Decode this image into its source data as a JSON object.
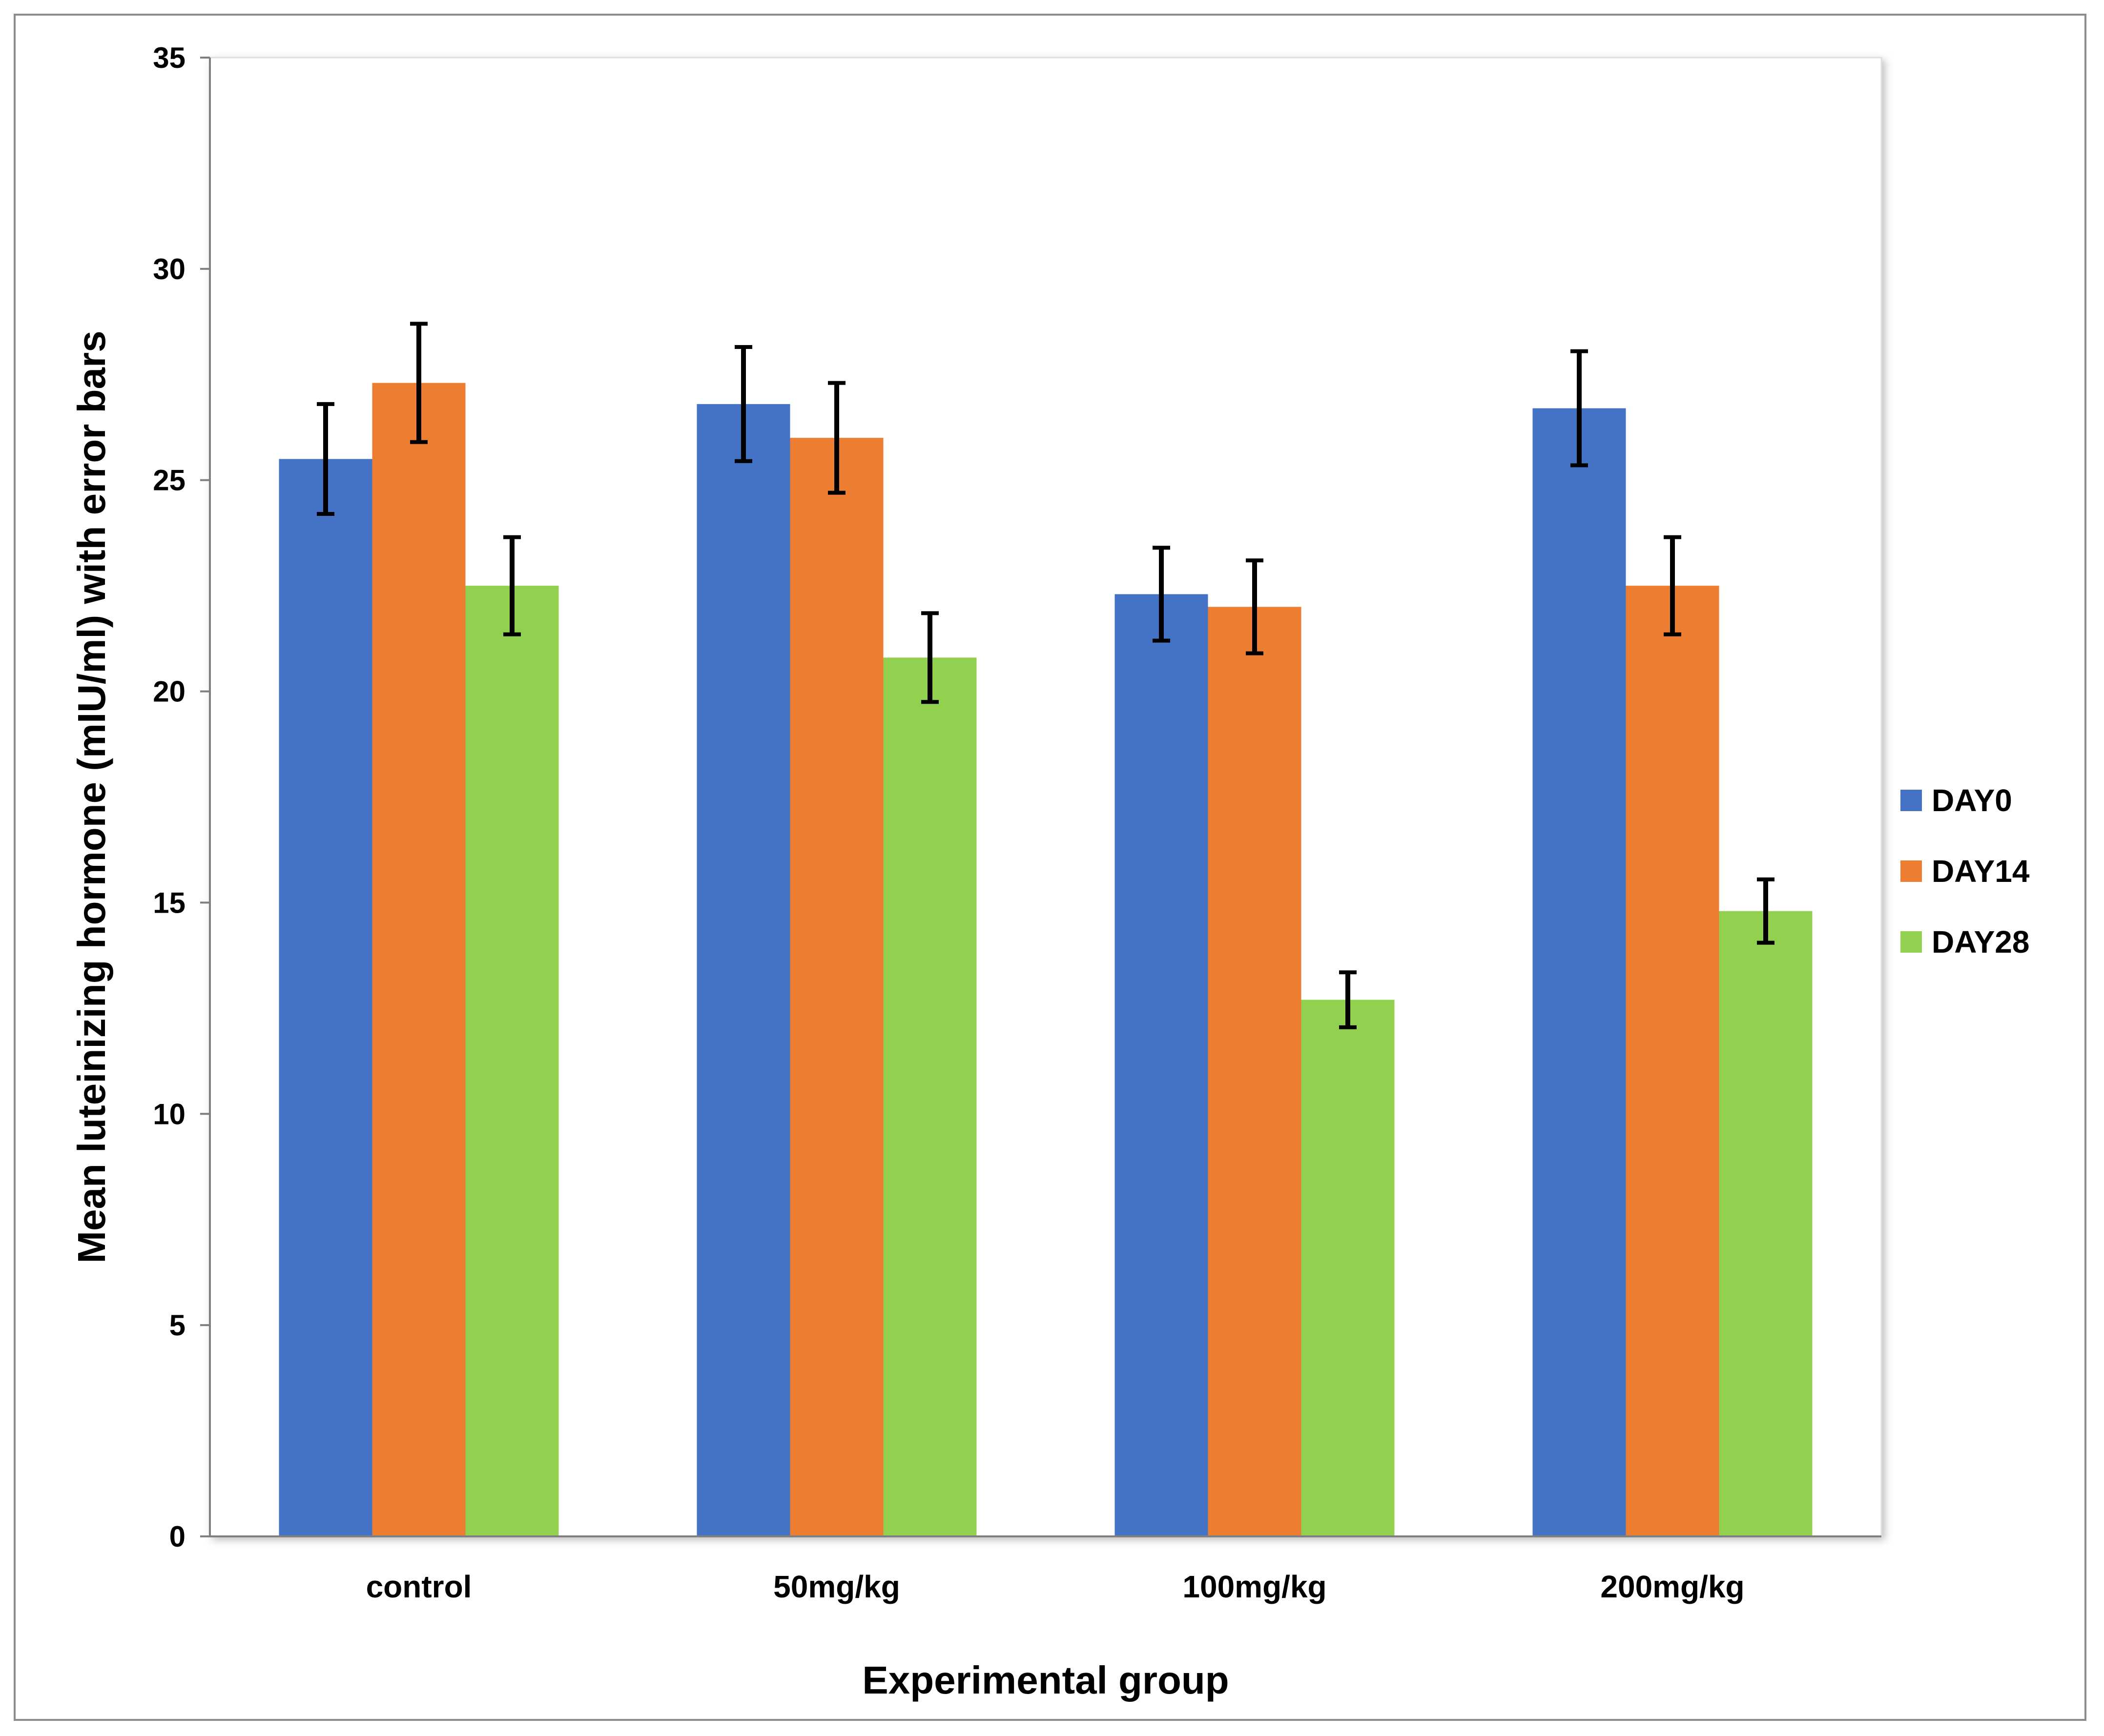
{
  "chart_data": {
    "type": "bar",
    "title": "",
    "xlabel": "Experimental group",
    "ylabel": "Mean luteinizing hormone (mIU/ml) with error bars",
    "categories": [
      "control",
      "50mg/kg",
      "100mg/kg",
      "200mg/kg"
    ],
    "ylim": [
      0,
      35
    ],
    "yticks": [
      0,
      5,
      10,
      15,
      20,
      25,
      30,
      35
    ],
    "ytick_labels": [
      "0",
      "5",
      "10",
      "15",
      "20",
      "25",
      "30",
      "35"
    ],
    "grid": false,
    "legend_position": "right",
    "series": [
      {
        "name": "DAY0",
        "color": "#4472c4",
        "values": [
          25.5,
          26.8,
          22.3,
          26.7
        ],
        "errors": [
          1.3,
          1.35,
          1.1,
          1.35
        ]
      },
      {
        "name": "DAY14",
        "color": "#ed7d31",
        "values": [
          27.3,
          26.0,
          22.0,
          22.5
        ],
        "errors": [
          1.4,
          1.3,
          1.1,
          1.15
        ]
      },
      {
        "name": "DAY28",
        "color": "#92d050",
        "values": [
          22.5,
          20.8,
          12.7,
          14.8
        ],
        "errors": [
          1.15,
          1.05,
          0.65,
          0.75
        ]
      }
    ]
  }
}
